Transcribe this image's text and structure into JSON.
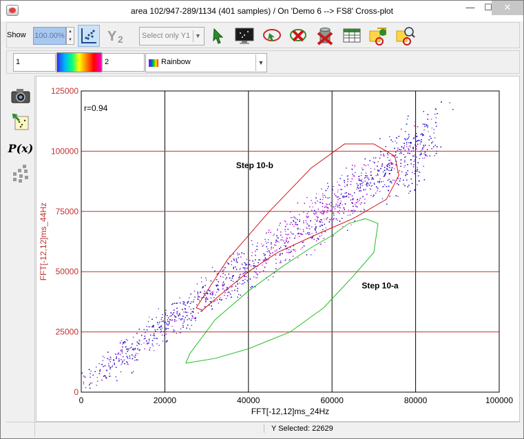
{
  "window": {
    "title": "area 102/947-289/1134 (401 samples) / On 'Demo 6 --> FS8' Cross-plot",
    "minimize": "—",
    "maximize": "☐",
    "close": "✕"
  },
  "toolbar": {
    "show_label": "Show",
    "zoom_value": "100.00%",
    "select_placeholder": "Select only Y1",
    "icons": [
      "scatter-icon",
      "y2-icon",
      "pointer-icon",
      "monitor-icon",
      "lasso-icon",
      "delete-selection-icon",
      "trash-icon",
      "table-icon",
      "settings-region-icon",
      "zoom-region-icon"
    ]
  },
  "colorbar": {
    "min_value": "1",
    "max_value": "2",
    "colormap": "Rainbow"
  },
  "sidebar": {
    "icons": [
      "camera-icon",
      "export-points-icon",
      "px-function-icon",
      "grid-dots-icon"
    ],
    "px_label": "P(x)"
  },
  "status": {
    "text": "Y Selected: 22629"
  },
  "chart_data": {
    "type": "scatter",
    "title": "",
    "xlabel": "FFT[-12,12]ms_24Hz",
    "ylabel": "FFT[-12,12]ms_44Hz",
    "xlim": [
      0,
      100000
    ],
    "ylim": [
      0,
      125000
    ],
    "x_ticks": [
      "0",
      "20000",
      "40000",
      "60000",
      "80000",
      "100000"
    ],
    "y_ticks": [
      "0",
      "25000",
      "50000",
      "75000",
      "100000",
      "125000"
    ],
    "grid": true,
    "annotations": {
      "correlation": "r=0.94",
      "region_b_label": "Step 10-b",
      "region_a_label": "Step 10-a"
    },
    "point_count": 22629,
    "trend": {
      "x": [
        2000,
        85000
      ],
      "y": [
        5000,
        107000
      ]
    },
    "regions": [
      {
        "name": "Step 10-b",
        "color": "#d01515",
        "x": [
          27500,
          35000,
          45000,
          55000,
          63000,
          70000,
          75000,
          76000,
          73000,
          65000,
          57000,
          47000,
          40000,
          33000,
          29000,
          27500
        ],
        "y": [
          35000,
          55000,
          75000,
          93000,
          103000,
          103000,
          98000,
          90000,
          80000,
          72000,
          66000,
          58000,
          50000,
          40000,
          34000,
          35000
        ]
      },
      {
        "name": "Step 10-a",
        "color": "#22bb22",
        "x": [
          25000,
          32000,
          40000,
          50000,
          58000,
          65000,
          70000,
          71000,
          68000,
          64000,
          60000,
          55000,
          48000,
          40000,
          32000,
          26000,
          25000
        ],
        "y": [
          12000,
          14000,
          18000,
          25000,
          35000,
          48000,
          58000,
          70000,
          72000,
          70000,
          65000,
          60000,
          52000,
          42000,
          30000,
          16000,
          12000
        ]
      }
    ]
  }
}
